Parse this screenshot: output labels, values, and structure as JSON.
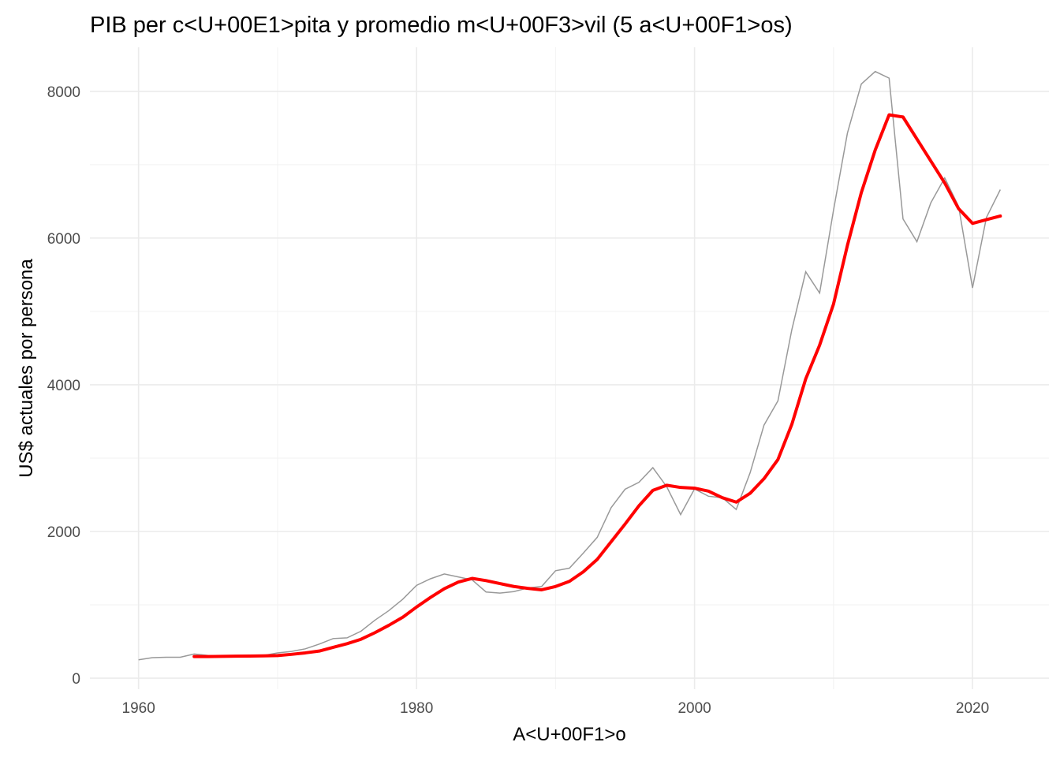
{
  "chart_data": {
    "type": "line",
    "title": "PIB per c<U+00E1>pita y promedio m<U+00F3>vil (5 a<U+00F1>os)",
    "xlabel": "A<U+00F1>o",
    "ylabel": "US$ actuales por persona",
    "xlim": [
      1956.5,
      2025.5
    ],
    "ylim": [
      -150,
      8600
    ],
    "x_ticks": [
      1960,
      1980,
      2000,
      2020
    ],
    "x_tick_labels": [
      "1960",
      "1980",
      "2000",
      "2020"
    ],
    "y_ticks": [
      0,
      2000,
      4000,
      6000,
      8000
    ],
    "y_tick_labels": [
      "0",
      "2000",
      "4000",
      "6000",
      "8000"
    ],
    "grid": true,
    "series": [
      {
        "color": "#999999",
        "x": [
          1960,
          1961,
          1962,
          1963,
          1964,
          1965,
          1966,
          1967,
          1968,
          1969,
          1970,
          1971,
          1972,
          1973,
          1974,
          1975,
          1976,
          1977,
          1978,
          1979,
          1980,
          1981,
          1982,
          1983,
          1984,
          1985,
          1986,
          1987,
          1988,
          1989,
          1990,
          1991,
          1992,
          1993,
          1994,
          1995,
          1996,
          1997,
          1998,
          1999,
          2000,
          2001,
          2002,
          2003,
          2004,
          2005,
          2006,
          2007,
          2008,
          2009,
          2010,
          2011,
          2012,
          2013,
          2014,
          2015,
          2016,
          2017,
          2018,
          2019,
          2020,
          2021,
          2022
        ],
        "y": [
          250,
          280,
          285,
          285,
          330,
          310,
          300,
          300,
          305,
          310,
          345,
          365,
          400,
          465,
          540,
          550,
          640,
          790,
          920,
          1075,
          1265,
          1355,
          1420,
          1380,
          1340,
          1175,
          1160,
          1180,
          1230,
          1250,
          1465,
          1500,
          1705,
          1920,
          2325,
          2575,
          2670,
          2870,
          2610,
          2230,
          2580,
          2480,
          2460,
          2300,
          2800,
          3450,
          3780,
          4750,
          5540,
          5250,
          6380,
          7430,
          8100,
          8270,
          8180,
          6260,
          5950,
          6480,
          6820,
          6430,
          5320,
          6280,
          6660
        ]
      },
      {
        "color": "#ff0000",
        "x": [
          1964,
          1965,
          1966,
          1967,
          1968,
          1969,
          1970,
          1971,
          1972,
          1973,
          1974,
          1975,
          1976,
          1977,
          1978,
          1979,
          1980,
          1981,
          1982,
          1983,
          1984,
          1985,
          1986,
          1987,
          1988,
          1989,
          1990,
          1991,
          1992,
          1993,
          1994,
          1995,
          1996,
          1997,
          1998,
          1999,
          2000,
          2001,
          2002,
          2003,
          2004,
          2005,
          2006,
          2007,
          2008,
          2009,
          2010,
          2011,
          2012,
          2013,
          2014,
          2015,
          2016,
          2017,
          2018,
          2019,
          2020,
          2021,
          2022
        ],
        "y": [
          295,
          295,
          297,
          300,
          302,
          304,
          308,
          325,
          345,
          370,
          420,
          470,
          530,
          620,
          720,
          830,
          970,
          1100,
          1220,
          1310,
          1360,
          1330,
          1290,
          1250,
          1225,
          1205,
          1250,
          1320,
          1450,
          1620,
          1860,
          2100,
          2350,
          2560,
          2630,
          2600,
          2590,
          2550,
          2460,
          2400,
          2520,
          2720,
          2980,
          3460,
          4080,
          4540,
          5100,
          5900,
          6620,
          7200,
          7680,
          7650,
          7350,
          7050,
          6750,
          6400,
          6200,
          6250,
          6300
        ]
      }
    ]
  }
}
